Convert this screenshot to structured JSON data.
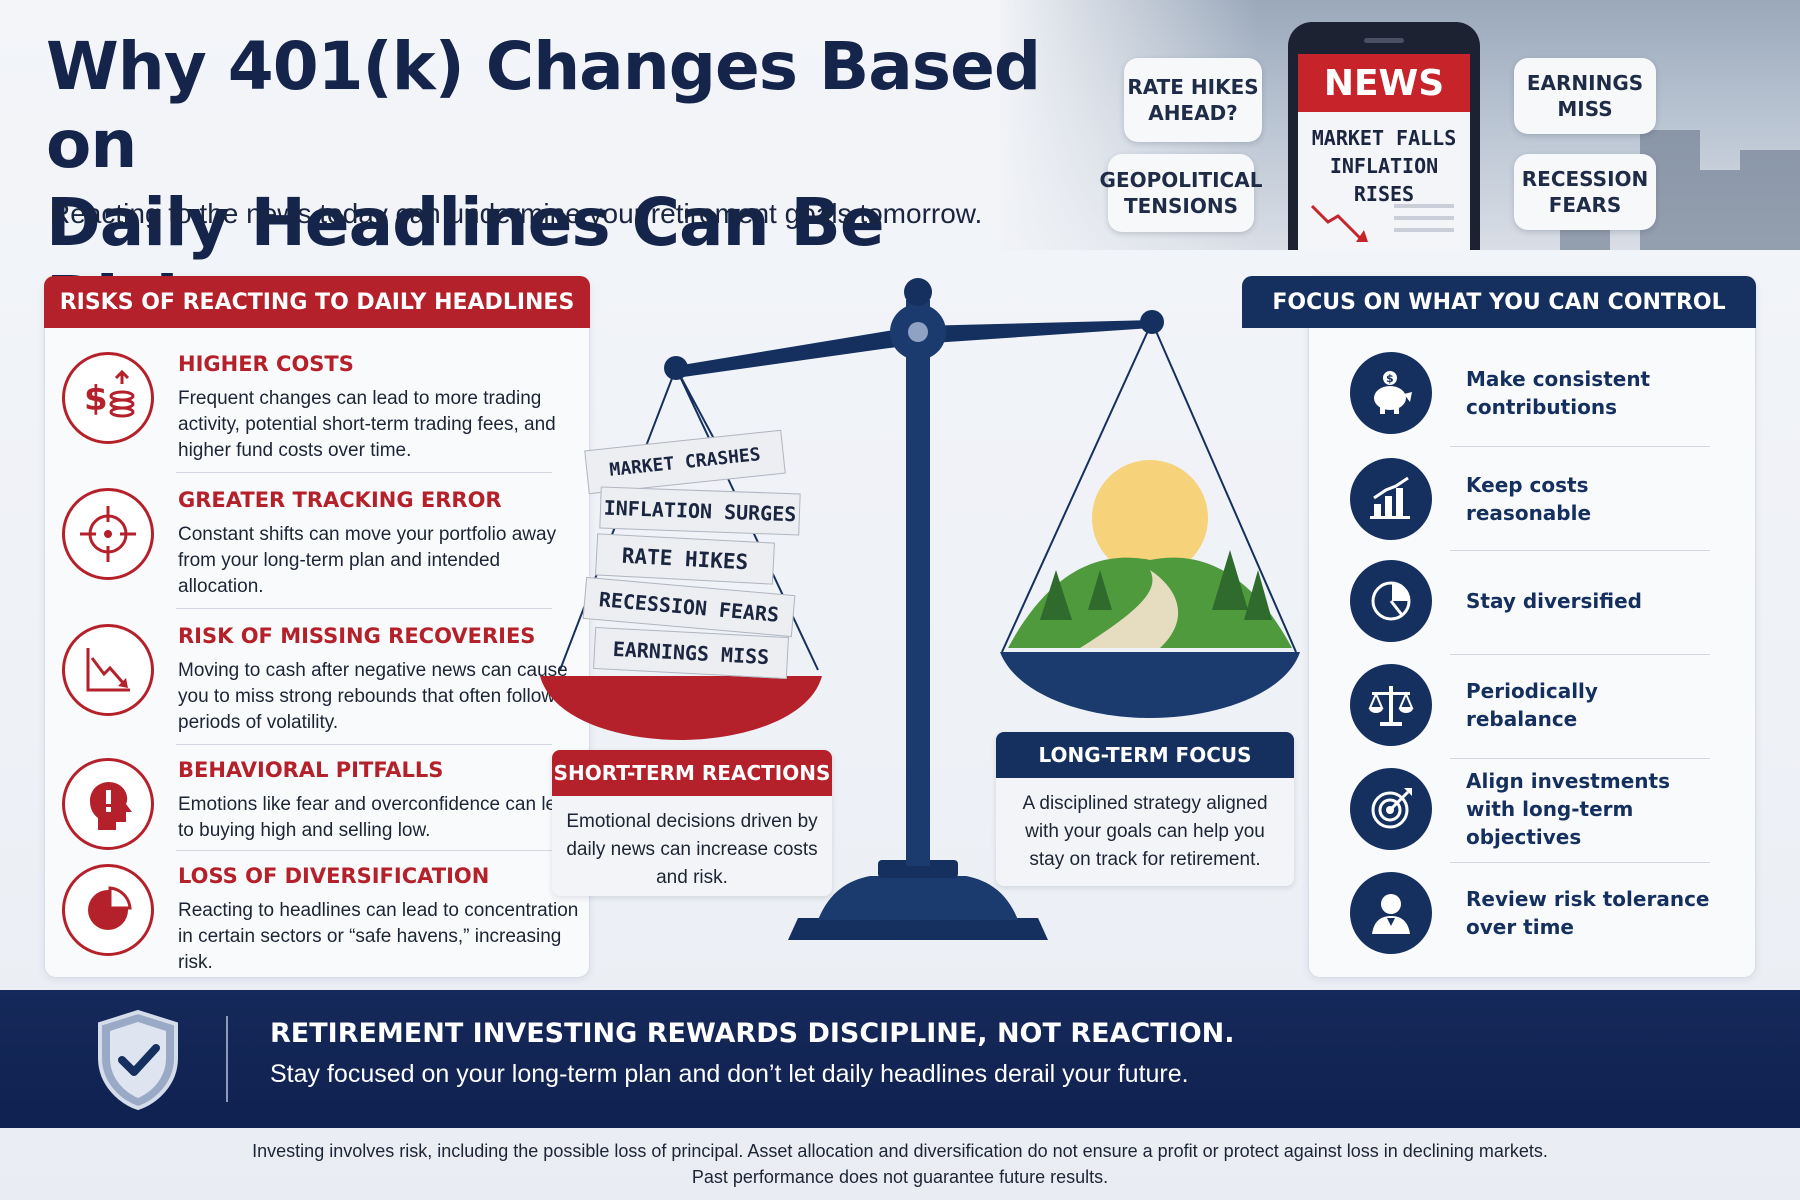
{
  "title_line1": "Why 401(k) Changes Based on",
  "title_line2": "Daily Headlines Can Be Risky",
  "subtitle": "Reacting to the news today can undermine your retirement goals tomorrow.",
  "bubbles": {
    "rate_hikes": "RATE HIKES\nAHEAD?",
    "geopolitical": "GEOPOLITICAL\nTENSIONS",
    "earnings_miss": "EARNINGS\nMISS",
    "recession_fears": "RECESSION\nFEARS"
  },
  "phone": {
    "news_label": "NEWS",
    "headline_line1": "MARKET FALLS",
    "headline_line2": "INFLATION RISES"
  },
  "risks": {
    "header": "RISKS OF REACTING TO DAILY HEADLINES",
    "items": [
      {
        "title": "HIGHER COSTS",
        "desc": "Frequent changes can lead to more trading activity, potential short-term trading fees, and higher fund costs over time.",
        "icon": "dollar-coins-icon"
      },
      {
        "title": "GREATER TRACKING ERROR",
        "desc": "Constant shifts can move your portfolio away from your long-term plan and intended allocation.",
        "icon": "crosshair-icon"
      },
      {
        "title": "RISK OF MISSING RECOVERIES",
        "desc": "Moving to cash after negative news can cause you to miss strong rebounds that often follow periods of volatility.",
        "icon": "downtrend-chart-icon"
      },
      {
        "title": "BEHAVIORAL PITFALLS",
        "desc": "Emotions like fear and overconfidence can lead to buying high and selling low.",
        "icon": "head-alert-icon"
      },
      {
        "title": "LOSS OF DIVERSIFICATION",
        "desc": "Reacting to headlines can lead to concentration in certain sectors or “safe havens,” increasing risk.",
        "icon": "pie-chart-icon"
      }
    ]
  },
  "scale": {
    "papers": [
      "MARKET CRASHES",
      "INFLATION SURGES",
      "RATE HIKES",
      "RECESSION FEARS",
      "EARNINGS MISS"
    ],
    "short_term_title": "SHORT-TERM REACTIONS",
    "short_term_desc": "Emotional decisions driven by daily news can increase costs and risk.",
    "long_term_title": "LONG-TERM FOCUS",
    "long_term_desc": "A disciplined strategy aligned with your goals can help you stay on track for retirement."
  },
  "control": {
    "header": "FOCUS ON WHAT YOU CAN CONTROL",
    "items": [
      {
        "text": "Make consistent contributions",
        "icon": "piggy-bank-icon"
      },
      {
        "text": "Keep costs reasonable",
        "icon": "bar-chart-icon"
      },
      {
        "text": "Stay diversified",
        "icon": "pie-chart-icon"
      },
      {
        "text": "Periodically rebalance",
        "icon": "balance-scale-icon"
      },
      {
        "text": "Align investments with long-term objectives",
        "icon": "target-icon"
      },
      {
        "text": "Review risk tolerance over time",
        "icon": "person-icon"
      }
    ]
  },
  "banner": {
    "title": "RETIREMENT INVESTING REWARDS DISCIPLINE, NOT REACTION.",
    "subtitle": "Stay focused on your long-term plan and don’t let daily headlines derail your future."
  },
  "disclaimer_line1": "Investing involves risk, including the possible loss of principal. Asset allocation and diversification do not ensure a profit or protect against loss in declining markets.",
  "disclaimer_line2": "Past performance does not guarantee future results.",
  "colors": {
    "navy": "#15305f",
    "red": "#b5212a",
    "banner": "#0f2150"
  }
}
